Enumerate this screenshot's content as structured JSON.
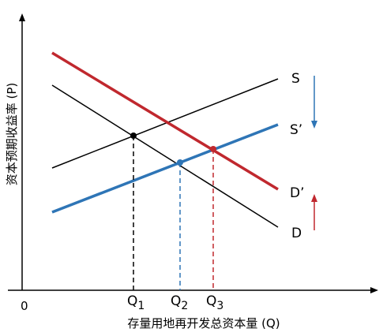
{
  "axes": {
    "y_label": "资本预期收益率 (P)",
    "x_label": "存量用地再开发总资本量 (Q)",
    "origin": "0"
  },
  "curves": {
    "S": "S",
    "S_prime": "S’",
    "D": "D",
    "D_prime": "D’"
  },
  "quantities": {
    "q1": {
      "letter": "Q",
      "sub": "1"
    },
    "q2": {
      "letter": "Q",
      "sub": "2"
    },
    "q3": {
      "letter": "Q",
      "sub": "3"
    }
  },
  "colors": {
    "black": "#000000",
    "blue": "#2e75b6",
    "red": "#c0282e"
  }
}
